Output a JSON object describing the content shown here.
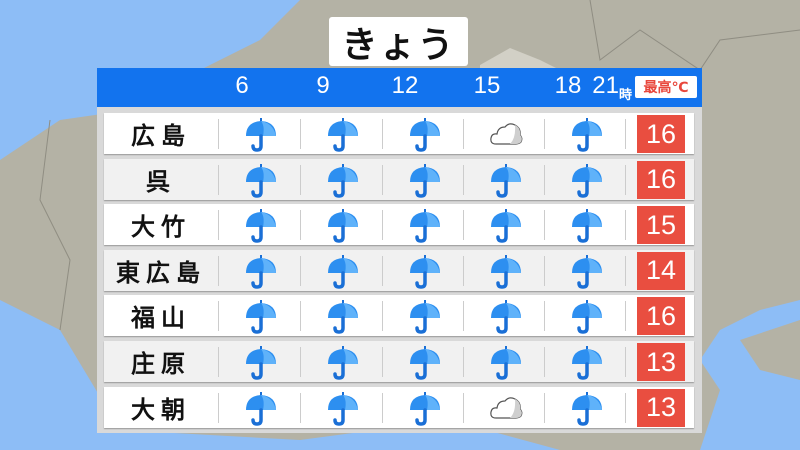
{
  "title": "きょう",
  "header": {
    "hours": [
      "6",
      "9",
      "12",
      "15",
      "18",
      "21"
    ],
    "hour_unit": "時",
    "max_label": "最高℃"
  },
  "colors": {
    "header": "#1273ee",
    "rain": "#2d8ff0",
    "temp_box": "#e94e40",
    "sea": "#8dbdf6",
    "land": "#b4b2a5"
  },
  "rows": [
    {
      "city": "広島",
      "weather": [
        "rain",
        "rain",
        "rain",
        "cloudy",
        "rain"
      ],
      "max": "16"
    },
    {
      "city": "呉",
      "weather": [
        "rain",
        "rain",
        "rain",
        "rain",
        "rain"
      ],
      "max": "16"
    },
    {
      "city": "大竹",
      "weather": [
        "rain",
        "rain",
        "rain",
        "rain",
        "rain"
      ],
      "max": "15"
    },
    {
      "city": "東広島",
      "weather": [
        "rain",
        "rain",
        "rain",
        "rain",
        "rain"
      ],
      "max": "14"
    },
    {
      "city": "福山",
      "weather": [
        "rain",
        "rain",
        "rain",
        "rain",
        "rain"
      ],
      "max": "16"
    },
    {
      "city": "庄原",
      "weather": [
        "rain",
        "rain",
        "rain",
        "rain",
        "rain"
      ],
      "max": "13"
    },
    {
      "city": "大朝",
      "weather": [
        "rain",
        "rain",
        "rain",
        "cloudy",
        "rain"
      ],
      "max": "13"
    }
  ]
}
